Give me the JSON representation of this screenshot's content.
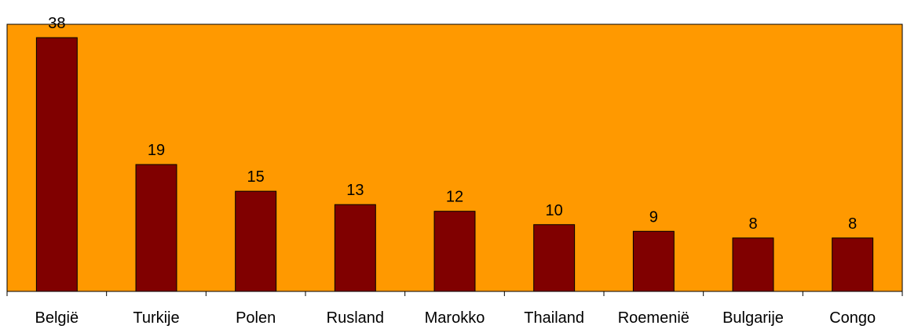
{
  "chart_data": {
    "type": "bar",
    "categories": [
      "België",
      "Turkije",
      "Polen",
      "Rusland",
      "Marokko",
      "Thailand",
      "Roemenië",
      "Bulgarije",
      "Congo"
    ],
    "values": [
      38,
      19,
      15,
      13,
      12,
      10,
      9,
      8,
      8
    ],
    "data_labels": [
      "38",
      "19",
      "15",
      "13",
      "12",
      "10",
      "9",
      "8",
      "8"
    ],
    "ylim": [
      0,
      40
    ],
    "grid": false,
    "legend": "none",
    "colors": {
      "plot_background": "#ff9900",
      "bar_fill": "#800000",
      "bar_stroke": "#000000",
      "axis": "#000000",
      "page_background": "#ffffff"
    }
  }
}
